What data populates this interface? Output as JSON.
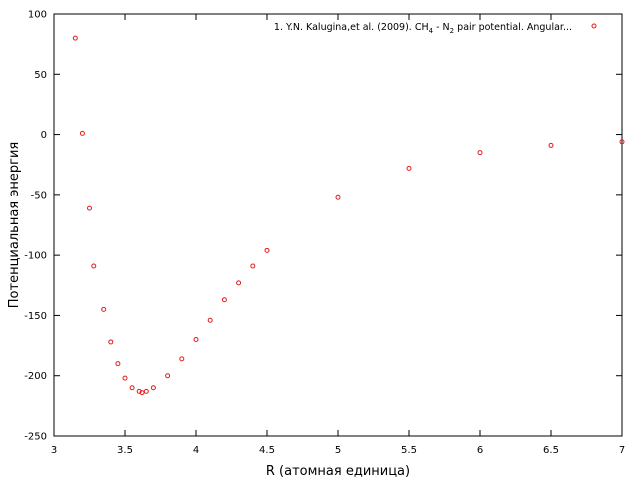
{
  "chart_data": {
    "type": "scatter",
    "xlabel": "R (атомная единица)",
    "ylabel": "Потенциальная энергия",
    "xlim": [
      3,
      7
    ],
    "ylim": [
      -250,
      100
    ],
    "xticks": [
      "3",
      "3.5",
      "4",
      "4.5",
      "5",
      "5.5",
      "6",
      "6.5",
      "7"
    ],
    "yticks": [
      "100",
      "50",
      "0",
      "-50",
      "-100",
      "-150",
      "-200",
      "-250"
    ],
    "grid": false,
    "legend_position": "top-right",
    "marker_color": "#e41a1c",
    "series": [
      {
        "name": "1. Y.N. Kalugina,et al. (2009). CH4 - N2 pair potential. Angular...",
        "legend_parts": {
          "prefix": "1. Y.N. Kalugina,et al. (2009). CH",
          "sub1": "4",
          "mid": " - N",
          "sub2": "2",
          "suffix": " pair potential. Angular..."
        },
        "x": [
          3.15,
          3.2,
          3.25,
          3.28,
          3.35,
          3.4,
          3.45,
          3.5,
          3.55,
          3.6,
          3.62,
          3.65,
          3.7,
          3.8,
          3.9,
          4.0,
          4.1,
          4.2,
          4.3,
          4.4,
          4.5,
          5.0,
          5.5,
          6.0,
          6.5,
          7.0
        ],
        "y": [
          80,
          1,
          -61,
          -109,
          -145,
          -172,
          -190,
          -202,
          -210,
          -213,
          -214,
          -213,
          -210,
          -200,
          -186,
          -170,
          -154,
          -137,
          -123,
          -109,
          -96,
          -52,
          -28,
          -15,
          -9,
          -6
        ]
      }
    ]
  }
}
